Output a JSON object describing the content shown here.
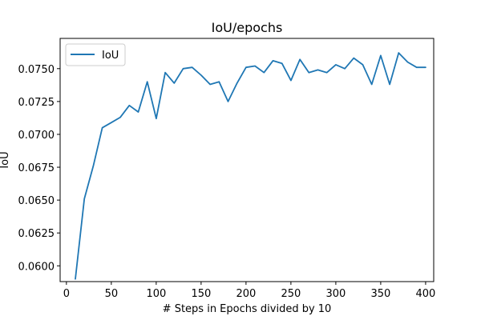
{
  "chart_data": {
    "type": "line",
    "title": "IoU/epochs",
    "xlabel": "# Steps in Epochs divided by 10",
    "ylabel": "IoU",
    "xlim": [
      -7,
      409
    ],
    "ylim": [
      0.0588,
      0.0773
    ],
    "xticks": [
      0,
      50,
      100,
      150,
      200,
      250,
      300,
      350,
      400
    ],
    "yticks": [
      0.06,
      0.0625,
      0.065,
      0.0675,
      0.07,
      0.0725,
      0.075
    ],
    "ytick_labels": [
      "0.0600",
      "0.0625",
      "0.0650",
      "0.0675",
      "0.0700",
      "0.0725",
      "0.0750"
    ],
    "grid": false,
    "legend_position": "upper-left",
    "series": [
      {
        "name": "IoU",
        "color": "#1f77b4",
        "x": [
          10,
          20,
          30,
          40,
          50,
          60,
          70,
          80,
          90,
          100,
          110,
          120,
          130,
          140,
          150,
          160,
          170,
          180,
          190,
          200,
          210,
          220,
          230,
          240,
          250,
          260,
          270,
          280,
          290,
          300,
          310,
          320,
          330,
          340,
          350,
          360,
          370,
          380,
          390,
          400
        ],
        "y": [
          0.059,
          0.0651,
          0.0676,
          0.0705,
          0.0709,
          0.0713,
          0.0722,
          0.0717,
          0.074,
          0.0712,
          0.0747,
          0.0739,
          0.075,
          0.0751,
          0.0745,
          0.0738,
          0.074,
          0.0725,
          0.0739,
          0.0751,
          0.0752,
          0.0747,
          0.0756,
          0.0754,
          0.0741,
          0.0757,
          0.0747,
          0.0749,
          0.0747,
          0.0753,
          0.075,
          0.0758,
          0.0753,
          0.0738,
          0.076,
          0.0738,
          0.0762,
          0.0755,
          0.0751,
          0.0751
        ]
      }
    ]
  }
}
